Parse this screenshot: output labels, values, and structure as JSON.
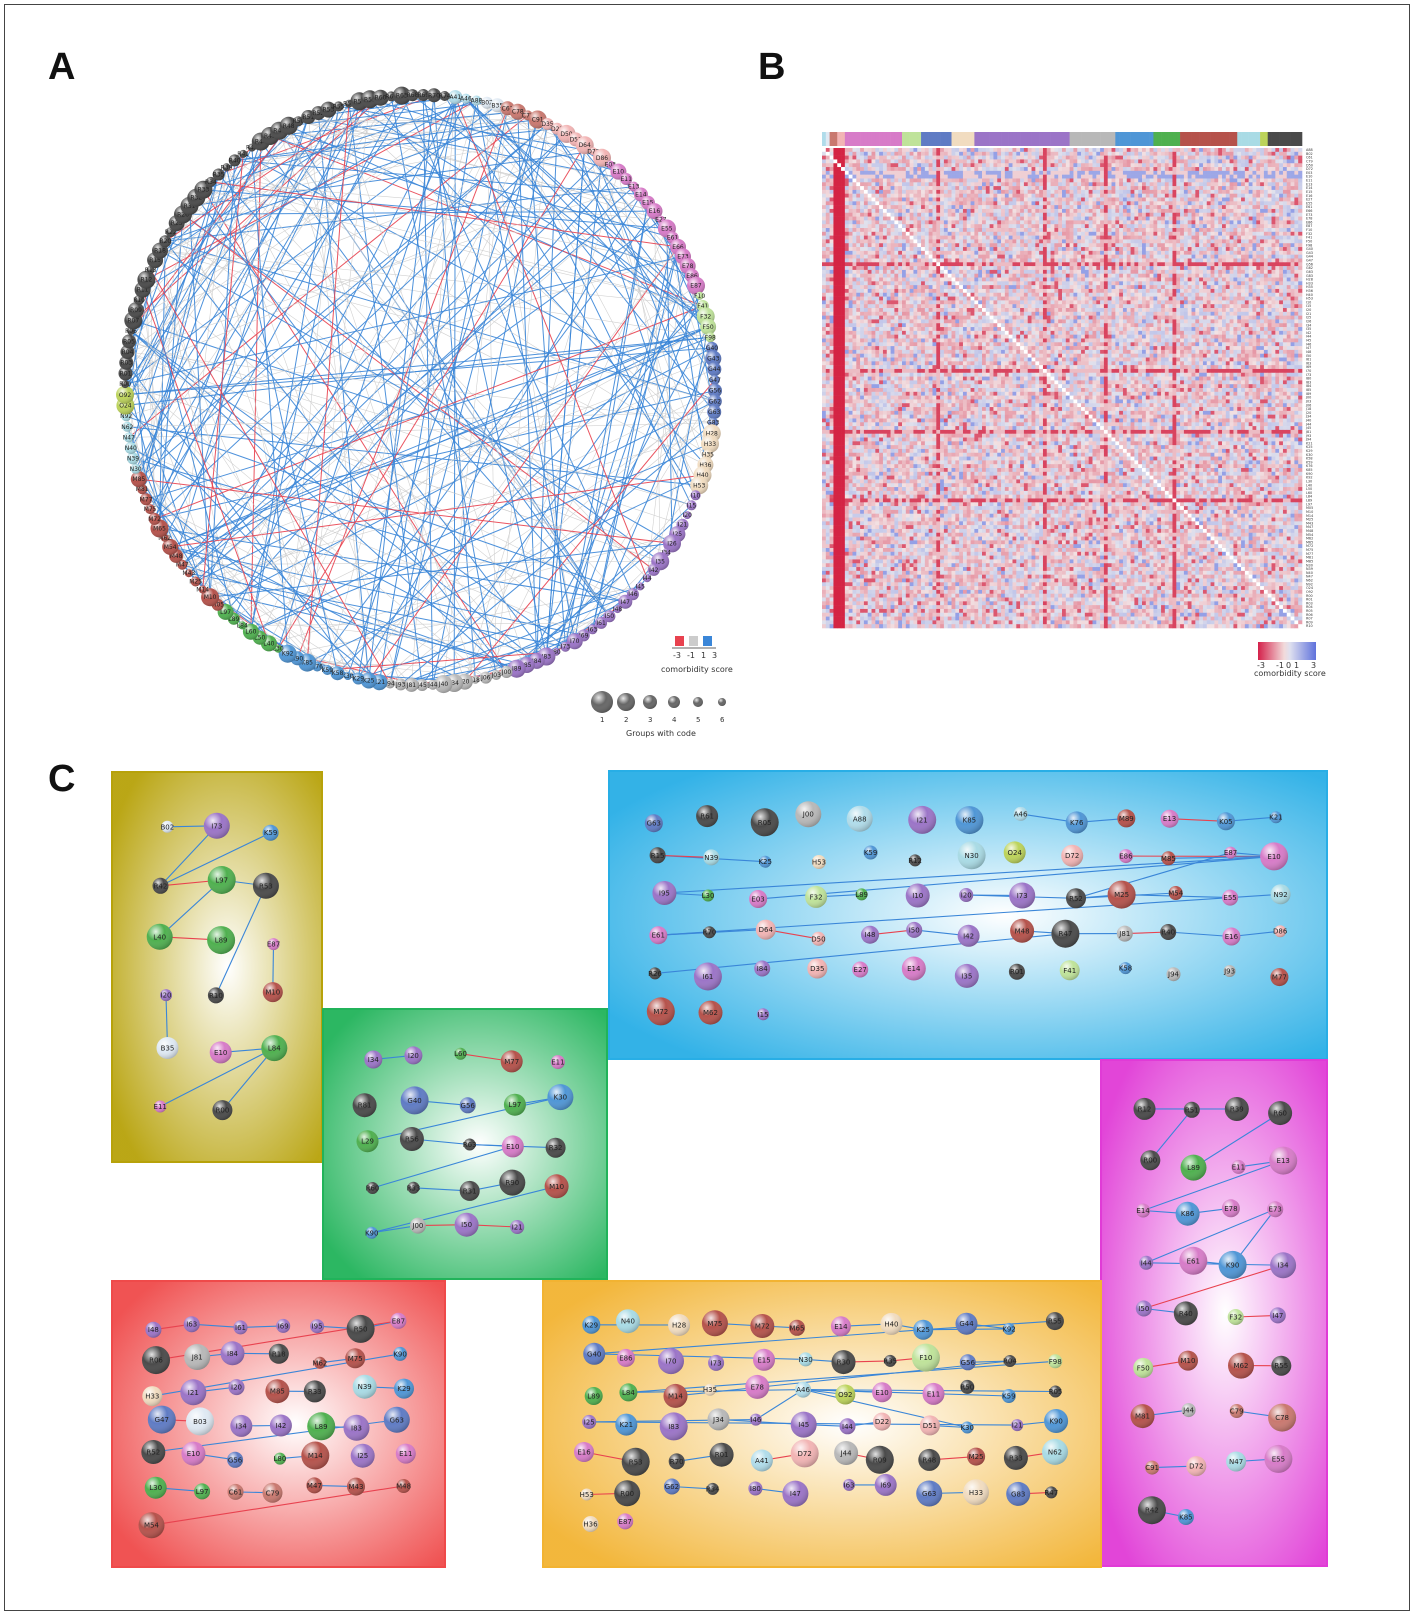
{
  "panels": {
    "a": "A",
    "b": "B",
    "c": "C"
  },
  "colors": {
    "positive": "#3a86d8",
    "neutral": "#cccccc",
    "negative": "#e8424f",
    "groups": {
      "A": "#b0dcea",
      "B": "#dfe9f3",
      "C": "#c9786f",
      "D": "#f2b4b4",
      "E": "#d77bc8",
      "F": "#bfe39a",
      "G": "#5f7bc4",
      "H": "#f1dcc0",
      "I": "#9b74c7",
      "J": "#b8b8b8",
      "K": "#4f96d6",
      "L": "#4fb04f",
      "M": "#b5524b",
      "N": "#a9dbe5",
      "O": "#bcd35a",
      "R": "#4a4a4a"
    }
  },
  "network": {
    "nodes": [
      "A41",
      "A46",
      "A88",
      "B02",
      "B35",
      "C61",
      "C78",
      "C79",
      "C91",
      "D35",
      "D22",
      "D50",
      "D51",
      "D64",
      "D72",
      "D86",
      "E03",
      "E10",
      "E11",
      "E13",
      "E14",
      "E15",
      "E16",
      "E27",
      "E55",
      "E61",
      "E66",
      "E73",
      "E78",
      "E86",
      "E87",
      "F10",
      "F41",
      "F32",
      "F50",
      "F98",
      "G40",
      "G43",
      "G44",
      "G47",
      "G56",
      "G62",
      "G63",
      "G83",
      "H28",
      "H33",
      "H35",
      "H36",
      "H40",
      "H53",
      "I10",
      "I15",
      "I20",
      "I21",
      "I25",
      "I26",
      "I34",
      "I35",
      "I42",
      "I44",
      "I45",
      "I46",
      "I47",
      "I48",
      "I50",
      "I61",
      "I63",
      "I69",
      "I70",
      "I73",
      "I80",
      "I83",
      "I84",
      "I85",
      "I89",
      "J00",
      "J03",
      "J06",
      "J18",
      "J20",
      "J34",
      "J40",
      "J44",
      "J45",
      "J81",
      "J93",
      "J94",
      "K21",
      "K25",
      "K29",
      "K30",
      "K58",
      "K59",
      "K76",
      "K85",
      "K90",
      "K92",
      "L30",
      "L40",
      "L50",
      "L60",
      "L84",
      "L89",
      "L97",
      "M05",
      "M10",
      "M14",
      "M25",
      "M43",
      "M47",
      "M48",
      "M54",
      "M62",
      "M65",
      "M72",
      "M75",
      "M77",
      "M81",
      "M85",
      "N30",
      "N39",
      "N40",
      "N47",
      "N62",
      "N92",
      "O24",
      "O92",
      "R00",
      "R01",
      "R03",
      "R04",
      "R05",
      "R06",
      "R07",
      "R09",
      "R10",
      "R11",
      "R12",
      "R13",
      "R15",
      "R18",
      "R20",
      "R22",
      "R25",
      "R26",
      "R31",
      "R32",
      "R33",
      "R34",
      "R35",
      "R39",
      "R40",
      "R41",
      "R42",
      "R44",
      "R45",
      "R47",
      "R48",
      "R50",
      "R51",
      "R52",
      "R53",
      "R55",
      "R56",
      "R57",
      "R59",
      "R60",
      "R61",
      "R63",
      "R68",
      "R69",
      "R70",
      "R74"
    ],
    "legend_score_title": "comorbidity score",
    "legend_score_ticks": [
      "-3",
      "-1",
      "1",
      "3"
    ],
    "legend_size_title": "Groups with code",
    "legend_size_ticks": [
      "1",
      "2",
      "3",
      "4",
      "5",
      "6"
    ]
  },
  "heatmap": {
    "legend_title": "comorbidity score",
    "legend_ticks": [
      "-3",
      "-1",
      "0",
      "1",
      "3"
    ],
    "row_labels": [
      "A88",
      "B02",
      "C61",
      "C79",
      "D50",
      "D72",
      "E03",
      "E10",
      "E11",
      "E13",
      "E14",
      "E15",
      "E16",
      "E27",
      "E55",
      "E61",
      "E66",
      "E73",
      "E78",
      "E86",
      "E87",
      "F10",
      "F32",
      "F41",
      "F50",
      "F98",
      "G40",
      "G43",
      "G44",
      "G47",
      "G56",
      "G62",
      "G63",
      "G83",
      "H28",
      "H33",
      "H35",
      "H36",
      "H40",
      "H53",
      "I10",
      "I15",
      "I20",
      "I21",
      "I25",
      "I26",
      "I34",
      "I35",
      "I42",
      "I44",
      "I45",
      "I46",
      "I47",
      "I48",
      "I50",
      "I61",
      "I63",
      "I69",
      "I70",
      "I73",
      "I80",
      "I83",
      "I84",
      "I85",
      "I89",
      "J00",
      "J03",
      "J06",
      "J18",
      "J20",
      "J34",
      "J40",
      "J44",
      "J45",
      "J81",
      "J93",
      "J94",
      "K21",
      "K25",
      "K29",
      "K30",
      "K58",
      "K59",
      "K76",
      "K85",
      "K90",
      "K92",
      "L30",
      "L40",
      "L50",
      "L60",
      "L84",
      "L89",
      "L97",
      "M05",
      "M10",
      "M14",
      "M25",
      "M43",
      "M47",
      "M48",
      "M54",
      "M62",
      "M65",
      "M72",
      "M75",
      "M77",
      "M81",
      "M85",
      "N30",
      "N39",
      "N40",
      "N47",
      "N62",
      "N92",
      "O24",
      "O92",
      "R00",
      "R01",
      "R03",
      "R04",
      "R05",
      "R06",
      "R07",
      "R09",
      "R10"
    ]
  },
  "clusters": [
    {
      "color": "#b7a20a",
      "nodes": [
        "B02",
        "I73",
        "K59",
        "R42",
        "L97",
        "R53",
        "L40",
        "L89",
        "E87",
        "I20",
        "R10",
        "M10",
        "B35",
        "R53",
        "E10",
        "L84",
        "E11",
        "R00"
      ],
      "edges": [
        [
          "B02",
          "I73"
        ],
        [
          "I73",
          "R42"
        ],
        [
          "K59",
          "R42"
        ],
        [
          "R42",
          "L97"
        ],
        [
          "L97",
          "R53"
        ],
        [
          "L97",
          "L40"
        ],
        [
          "L40",
          "L89"
        ],
        [
          "E87",
          "M10"
        ],
        [
          "I20",
          "B35"
        ],
        [
          "R10",
          "R53"
        ],
        [
          "E10",
          "L84"
        ],
        [
          "L84",
          "E11"
        ],
        [
          "L84",
          "R00"
        ]
      ]
    },
    {
      "color": "#21b35a",
      "nodes": [
        "I34",
        "I20",
        "L60",
        "M77",
        "E11",
        "R81",
        "G40",
        "G56",
        "L97",
        "K30",
        "L29",
        "R56",
        "R63",
        "E10",
        "R32",
        "R60",
        "R33",
        "R31",
        "R90",
        "M10",
        "K90",
        "J00",
        "I50",
        "I21"
      ],
      "edges": [
        [
          "I34",
          "I20"
        ],
        [
          "L60",
          "M77"
        ],
        [
          "G40",
          "G56"
        ],
        [
          "L97",
          "K30"
        ],
        [
          "K30",
          "L29"
        ],
        [
          "R56",
          "R63"
        ],
        [
          "R63",
          "E10"
        ],
        [
          "E10",
          "R60"
        ],
        [
          "R32",
          "R63"
        ],
        [
          "R33",
          "R31"
        ],
        [
          "R31",
          "R90"
        ],
        [
          "M10",
          "K90"
        ],
        [
          "K90",
          "J00"
        ],
        [
          "J00",
          "I50"
        ],
        [
          "I50",
          "I21"
        ]
      ]
    },
    {
      "color": "#28aee6",
      "nodes": [
        "G63",
        "R61",
        "R05",
        "J00",
        "A88",
        "I21",
        "K85",
        "A46",
        "K76",
        "M89",
        "E13",
        "K05",
        "K21",
        "R15",
        "N39",
        "K25",
        "H53",
        "K59",
        "R12",
        "N30",
        "O24",
        "D72",
        "E86",
        "M85",
        "E87",
        "E10",
        "I95",
        "L30",
        "E03",
        "F32",
        "L89",
        "I10",
        "I20",
        "I73",
        "R52",
        "M25",
        "M54",
        "E55",
        "N92",
        "E61",
        "R70",
        "D64",
        "D50",
        "I48",
        "I50",
        "I42",
        "M48",
        "R47",
        "J81",
        "R40",
        "E16",
        "D86",
        "R26",
        "I61",
        "I84",
        "D35",
        "E27",
        "E14",
        "I35",
        "R01",
        "F41",
        "K58",
        "J94",
        "J93",
        "M77",
        "M72",
        "M62",
        "I15"
      ],
      "edges": [
        [
          "A46",
          "K76"
        ],
        [
          "K76",
          "M89"
        ],
        [
          "E13",
          "K05"
        ],
        [
          "K05",
          "K21"
        ],
        [
          "N92",
          "E61"
        ],
        [
          "E61",
          "D64"
        ],
        [
          "D64",
          "D50"
        ],
        [
          "R70",
          "E61"
        ],
        [
          "I48",
          "I50"
        ],
        [
          "I50",
          "I42"
        ],
        [
          "M48",
          "R47"
        ],
        [
          "R47",
          "J81"
        ],
        [
          "J81",
          "R40"
        ],
        [
          "R40",
          "E16"
        ],
        [
          "E16",
          "D86"
        ],
        [
          "R47",
          "R26"
        ],
        [
          "I73",
          "I20"
        ],
        [
          "I20",
          "R52"
        ],
        [
          "R52",
          "M25"
        ],
        [
          "M25",
          "E55"
        ],
        [
          "R52",
          "M54"
        ],
        [
          "R52",
          "E87"
        ],
        [
          "E87",
          "E10"
        ],
        [
          "E10",
          "E86"
        ],
        [
          "E10",
          "M85"
        ],
        [
          "E10",
          "I95"
        ],
        [
          "I95",
          "L30"
        ],
        [
          "F32",
          "L89"
        ],
        [
          "E10",
          "E03"
        ],
        [
          "K25",
          "R15"
        ],
        [
          "N39",
          "R15"
        ]
      ]
    },
    {
      "color": "#e03bd6",
      "nodes": [
        "R12",
        "R51",
        "R39",
        "R60",
        "R00",
        "L89",
        "E11",
        "E13",
        "E14",
        "K86",
        "E78",
        "E73",
        "I44",
        "E61",
        "K90",
        "I34",
        "I50",
        "R40",
        "F32",
        "I47",
        "F50",
        "M10",
        "M62",
        "R55",
        "M81",
        "J44",
        "C79",
        "C78",
        "C91",
        "D72",
        "N47",
        "E55",
        "R42",
        "K85"
      ],
      "edges": [
        [
          "R12",
          "R39"
        ],
        [
          "R60",
          "L89"
        ],
        [
          "R51",
          "R00"
        ],
        [
          "E11",
          "E13"
        ],
        [
          "E13",
          "E14"
        ],
        [
          "E14",
          "K86"
        ],
        [
          "K86",
          "E78"
        ],
        [
          "E73",
          "K90"
        ],
        [
          "E61",
          "K90"
        ],
        [
          "E73",
          "I44"
        ],
        [
          "I44",
          "I34"
        ],
        [
          "I34",
          "I50"
        ],
        [
          "I50",
          "R40"
        ],
        [
          "F32",
          "I47"
        ],
        [
          "F50",
          "M10"
        ],
        [
          "M62",
          "R55"
        ],
        [
          "M81",
          "J44"
        ],
        [
          "C79",
          "C78"
        ],
        [
          "C91",
          "D72"
        ],
        [
          "N47",
          "E55"
        ],
        [
          "R42",
          "K85"
        ]
      ]
    },
    {
      "color": "#ef4a4a",
      "nodes": [
        "I48",
        "I63",
        "I61",
        "I69",
        "I95",
        "R50",
        "E87",
        "R06",
        "J81",
        "I84",
        "R18",
        "M62",
        "M75",
        "K90",
        "H33",
        "I21",
        "I20",
        "M85",
        "R33",
        "N39",
        "K29",
        "G47",
        "B03",
        "I34",
        "I42",
        "L89",
        "I83",
        "G63",
        "R52",
        "E10",
        "G56",
        "L80",
        "M14",
        "I25",
        "E11",
        "L30",
        "L97",
        "C61",
        "C79",
        "M47",
        "M43",
        "M48",
        "M54"
      ],
      "edges": [
        [
          "I48",
          "I63"
        ],
        [
          "I63",
          "I61"
        ],
        [
          "I61",
          "I69"
        ],
        [
          "I95",
          "R50"
        ],
        [
          "R50",
          "E87"
        ],
        [
          "E87",
          "R06"
        ],
        [
          "J81",
          "I84"
        ],
        [
          "I84",
          "R18"
        ],
        [
          "M62",
          "M75"
        ],
        [
          "K90",
          "H33"
        ],
        [
          "I21",
          "I20"
        ],
        [
          "M85",
          "R33"
        ],
        [
          "N39",
          "K29"
        ],
        [
          "G47",
          "B03"
        ],
        [
          "I34",
          "I42"
        ],
        [
          "L89",
          "I83"
        ],
        [
          "G63",
          "R52"
        ],
        [
          "E10",
          "G56"
        ],
        [
          "L80",
          "M14"
        ],
        [
          "L30",
          "L97"
        ],
        [
          "C61",
          "C79"
        ],
        [
          "M47",
          "M43"
        ],
        [
          "M48",
          "M54"
        ]
      ]
    },
    {
      "color": "#f2b332",
      "nodes": [
        "K29",
        "N40",
        "H28",
        "M75",
        "M72",
        "M65",
        "E14",
        "H40",
        "K25",
        "G44",
        "K92",
        "R55",
        "G40",
        "E86",
        "I70",
        "I73",
        "E15",
        "N30",
        "R30",
        "R35",
        "F10",
        "G56",
        "R04",
        "F98",
        "L89",
        "L84",
        "M14",
        "H35",
        "E78",
        "A46",
        "O92",
        "E10",
        "E11",
        "R50",
        "K59",
        "R05",
        "I25",
        "K21",
        "I83",
        "J34",
        "I46",
        "I45",
        "I44",
        "D22",
        "D51",
        "K30",
        "I21",
        "K90",
        "E16",
        "R53",
        "R70",
        "R01",
        "A41",
        "D72",
        "J44",
        "R09",
        "R48",
        "M25",
        "R33",
        "N62",
        "H53",
        "R00",
        "G62",
        "R34",
        "I80",
        "I47",
        "I63",
        "I69",
        "G63",
        "H33",
        "G83",
        "R47",
        "H36",
        "E87"
      ],
      "edges": [
        [
          "K29",
          "H28"
        ],
        [
          "M75",
          "M72"
        ],
        [
          "M72",
          "M65"
        ],
        [
          "E14",
          "H40"
        ],
        [
          "H40",
          "K25"
        ],
        [
          "G44",
          "K92"
        ],
        [
          "K92",
          "K25"
        ],
        [
          "K25",
          "R55"
        ],
        [
          "K25",
          "G40"
        ],
        [
          "G40",
          "N30"
        ],
        [
          "N30",
          "R30"
        ],
        [
          "R30",
          "R35"
        ],
        [
          "R35",
          "F10"
        ],
        [
          "G56",
          "R04"
        ],
        [
          "R04",
          "M14"
        ],
        [
          "F98",
          "L84"
        ],
        [
          "L84",
          "A46"
        ],
        [
          "A46",
          "O92"
        ],
        [
          "A46",
          "E10"
        ],
        [
          "A46",
          "K59"
        ],
        [
          "A46",
          "R05"
        ],
        [
          "A46",
          "I46"
        ],
        [
          "I46",
          "I25"
        ],
        [
          "I25",
          "I21"
        ],
        [
          "I21",
          "K90"
        ],
        [
          "A46",
          "K30"
        ],
        [
          "K30",
          "D51"
        ],
        [
          "J34",
          "I45"
        ],
        [
          "I45",
          "I44"
        ],
        [
          "I44",
          "D22"
        ],
        [
          "E16",
          "R53"
        ],
        [
          "R70",
          "R01"
        ],
        [
          "A41",
          "D72"
        ],
        [
          "J44",
          "R09"
        ],
        [
          "R48",
          "M25"
        ],
        [
          "R33",
          "N62"
        ],
        [
          "H53",
          "R00"
        ],
        [
          "G62",
          "R34"
        ],
        [
          "I80",
          "I47"
        ],
        [
          "I63",
          "I69"
        ],
        [
          "G63",
          "H33"
        ],
        [
          "G83",
          "R47"
        ]
      ]
    }
  ]
}
